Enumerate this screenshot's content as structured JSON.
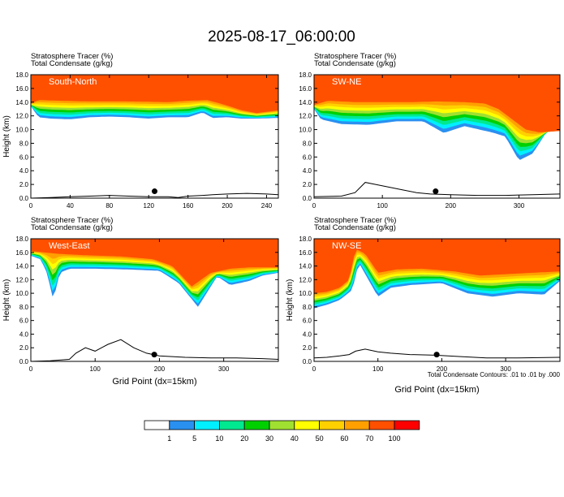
{
  "figure": {
    "title": "2025-08-17_06:00:00",
    "footnote": "Total Condensate Contours: .01 to .01 by .000"
  },
  "colorbar": {
    "colors": [
      "#ffffff",
      "#2a90f0",
      "#00f0ff",
      "#00e890",
      "#00d000",
      "#a0e030",
      "#ffff00",
      "#ffd000",
      "#ffa000",
      "#ff5000",
      "#ff0000"
    ],
    "labels": [
      "1",
      "5",
      "10",
      "20",
      "30",
      "40",
      "50",
      "60",
      "70",
      "100"
    ]
  },
  "chart_data": [
    {
      "type": "heatmap",
      "panel_label": "South-North",
      "left_title_1": "Stratosphere Tracer",
      "left_units_1": "(%)",
      "left_title_2": "Total Condensate",
      "left_units_2": "(g/kg)",
      "ylabel": "Height (km)",
      "xlabel": "",
      "xlim": [
        0,
        252
      ],
      "ylim": [
        0,
        18
      ],
      "xticks": [
        "0",
        "40",
        "80",
        "120",
        "160",
        "200",
        "240"
      ],
      "xtick_values": [
        0,
        40,
        80,
        120,
        160,
        200,
        240
      ],
      "yticks": [
        "0.0",
        "2.0",
        "4.0",
        "6.0",
        "8.0",
        "10.0",
        "12.0",
        "14.0",
        "16.0",
        "18.0"
      ],
      "tracer_base": [
        [
          0,
          13.4
        ],
        [
          8,
          11.8
        ],
        [
          20,
          11.6
        ],
        [
          40,
          11.5
        ],
        [
          60,
          11.8
        ],
        [
          80,
          11.9
        ],
        [
          100,
          11.8
        ],
        [
          120,
          11.6
        ],
        [
          140,
          11.8
        ],
        [
          160,
          11.8
        ],
        [
          175,
          12.5
        ],
        [
          185,
          11.7
        ],
        [
          200,
          11.8
        ],
        [
          215,
          11.6
        ],
        [
          230,
          11.6
        ],
        [
          252,
          11.7
        ]
      ],
      "tracer_top_red": [
        [
          0,
          13.8
        ],
        [
          8,
          14.3
        ],
        [
          30,
          14.2
        ],
        [
          60,
          14.1
        ],
        [
          100,
          14.1
        ],
        [
          140,
          14.0
        ],
        [
          160,
          14.2
        ],
        [
          180,
          14.3
        ],
        [
          200,
          13.5
        ],
        [
          215,
          12.8
        ],
        [
          230,
          12.4
        ],
        [
          252,
          12.8
        ]
      ],
      "terrain": [
        [
          0,
          0
        ],
        [
          20,
          0.1
        ],
        [
          40,
          0.2
        ],
        [
          60,
          0.3
        ],
        [
          80,
          0.4
        ],
        [
          100,
          0.3
        ],
        [
          120,
          0.2
        ],
        [
          140,
          0.2
        ],
        [
          150,
          0.1
        ],
        [
          160,
          0.3
        ],
        [
          175,
          0.4
        ],
        [
          185,
          0.5
        ],
        [
          200,
          0.6
        ],
        [
          220,
          0.7
        ],
        [
          240,
          0.6
        ],
        [
          252,
          0.5
        ]
      ],
      "marker": {
        "x": 126,
        "y": 1.0
      }
    },
    {
      "type": "heatmap",
      "panel_label": "SW-NE",
      "left_title_1": "Stratosphere Tracer",
      "left_units_1": "(%)",
      "left_title_2": "Total Condensate",
      "left_units_2": "(g/kg)",
      "ylabel": "",
      "xlabel": "",
      "xlim": [
        0,
        360
      ],
      "ylim": [
        0,
        18
      ],
      "xticks": [
        "0",
        "100",
        "200",
        "300"
      ],
      "xtick_values": [
        0,
        100,
        200,
        300
      ],
      "yticks": [
        "0.0",
        "2.0",
        "4.0",
        "6.0",
        "8.0",
        "10.0",
        "12.0",
        "14.0",
        "16.0",
        "18.0"
      ],
      "tracer_base": [
        [
          0,
          13.0
        ],
        [
          10,
          11.5
        ],
        [
          40,
          10.8
        ],
        [
          80,
          10.7
        ],
        [
          120,
          11.2
        ],
        [
          160,
          11.2
        ],
        [
          190,
          9.5
        ],
        [
          220,
          10.5
        ],
        [
          260,
          9.6
        ],
        [
          280,
          9.0
        ],
        [
          300,
          5.5
        ],
        [
          320,
          6.5
        ],
        [
          340,
          9.6
        ],
        [
          360,
          10.0
        ]
      ],
      "tracer_top_red": [
        [
          0,
          13.6
        ],
        [
          20,
          14.2
        ],
        [
          60,
          14.0
        ],
        [
          100,
          14.0
        ],
        [
          140,
          14.0
        ],
        [
          180,
          14.1
        ],
        [
          220,
          14.0
        ],
        [
          250,
          13.8
        ],
        [
          270,
          13.0
        ],
        [
          290,
          11.5
        ],
        [
          310,
          10.0
        ],
        [
          330,
          9.6
        ],
        [
          360,
          9.8
        ]
      ],
      "terrain": [
        [
          0,
          0.2
        ],
        [
          40,
          0.3
        ],
        [
          60,
          0.8
        ],
        [
          75,
          2.3
        ],
        [
          90,
          2.0
        ],
        [
          110,
          1.6
        ],
        [
          130,
          1.2
        ],
        [
          150,
          0.8
        ],
        [
          170,
          0.6
        ],
        [
          200,
          0.5
        ],
        [
          240,
          0.4
        ],
        [
          280,
          0.4
        ],
        [
          320,
          0.5
        ],
        [
          360,
          0.6
        ]
      ],
      "marker": {
        "x": 178,
        "y": 1.0
      }
    },
    {
      "type": "heatmap",
      "panel_label": "West-East",
      "left_title_1": "Stratosphere Tracer",
      "left_units_1": "(%)",
      "left_title_2": "Total Condensate",
      "left_units_2": "(g/kg)",
      "ylabel": "Height (km)",
      "xlabel": "Grid Point (dx=15km)",
      "xlim": [
        0,
        385
      ],
      "ylim": [
        0,
        18
      ],
      "xticks": [
        "0",
        "100",
        "200",
        "300"
      ],
      "xtick_values": [
        0,
        100,
        200,
        300
      ],
      "yticks": [
        "0.0",
        "2.0",
        "4.0",
        "6.0",
        "8.0",
        "10.0",
        "12.0",
        "14.0",
        "16.0",
        "18.0"
      ],
      "tracer_base": [
        [
          0,
          15.5
        ],
        [
          15,
          15.0
        ],
        [
          25,
          13.0
        ],
        [
          35,
          9.0
        ],
        [
          45,
          13.0
        ],
        [
          60,
          13.6
        ],
        [
          100,
          13.6
        ],
        [
          150,
          13.5
        ],
        [
          200,
          13.3
        ],
        [
          230,
          11.5
        ],
        [
          260,
          8.0
        ],
        [
          290,
          12.5
        ],
        [
          310,
          11.2
        ],
        [
          340,
          11.8
        ],
        [
          360,
          12.6
        ],
        [
          385,
          13.0
        ]
      ],
      "tracer_top_red": [
        [
          0,
          16.2
        ],
        [
          20,
          16.0
        ],
        [
          40,
          15.8
        ],
        [
          80,
          15.6
        ],
        [
          140,
          15.4
        ],
        [
          190,
          15.0
        ],
        [
          220,
          14.0
        ],
        [
          250,
          11.0
        ],
        [
          280,
          13.0
        ],
        [
          310,
          13.6
        ],
        [
          340,
          13.8
        ],
        [
          385,
          13.8
        ]
      ],
      "terrain": [
        [
          0,
          0
        ],
        [
          30,
          0.1
        ],
        [
          60,
          0.3
        ],
        [
          70,
          1.2
        ],
        [
          85,
          2.0
        ],
        [
          100,
          1.5
        ],
        [
          120,
          2.5
        ],
        [
          140,
          3.2
        ],
        [
          160,
          2.0
        ],
        [
          180,
          1.2
        ],
        [
          200,
          0.8
        ],
        [
          240,
          0.6
        ],
        [
          280,
          0.5
        ],
        [
          320,
          0.5
        ],
        [
          360,
          0.4
        ],
        [
          385,
          0.3
        ]
      ],
      "marker": {
        "x": 192,
        "y": 1.0
      }
    },
    {
      "type": "heatmap",
      "panel_label": "NW-SE",
      "left_title_1": "Stratosphere Tracer",
      "left_units_1": "(%)",
      "left_title_2": "Total Condensate",
      "left_units_2": "(g/kg)",
      "ylabel": "Height (km)",
      "xlabel": "Grid Point (dx=15km)",
      "xlim": [
        0,
        385
      ],
      "ylim": [
        0,
        18
      ],
      "xticks": [
        "0",
        "100",
        "200",
        "300"
      ],
      "xtick_values": [
        0,
        100,
        200,
        300
      ],
      "yticks": [
        "0.0",
        "2.0",
        "4.0",
        "6.0",
        "8.0",
        "10.0",
        "12.0",
        "14.0",
        "16.0",
        "18.0"
      ],
      "tracer_base": [
        [
          0,
          7.8
        ],
        [
          20,
          8.3
        ],
        [
          40,
          9.0
        ],
        [
          60,
          10.5
        ],
        [
          70,
          14.5
        ],
        [
          85,
          12.0
        ],
        [
          100,
          9.5
        ],
        [
          120,
          10.8
        ],
        [
          150,
          11.2
        ],
        [
          200,
          11.5
        ],
        [
          240,
          10.0
        ],
        [
          280,
          9.5
        ],
        [
          320,
          10.0
        ],
        [
          360,
          9.8
        ],
        [
          385,
          11.8
        ]
      ],
      "tracer_top_red": [
        [
          0,
          10.0
        ],
        [
          20,
          10.2
        ],
        [
          40,
          10.8
        ],
        [
          55,
          12.0
        ],
        [
          65,
          16.5
        ],
        [
          80,
          15.8
        ],
        [
          100,
          13.0
        ],
        [
          130,
          13.5
        ],
        [
          170,
          13.6
        ],
        [
          220,
          13.2
        ],
        [
          260,
          12.6
        ],
        [
          300,
          12.8
        ],
        [
          340,
          13.0
        ],
        [
          385,
          13.2
        ]
      ],
      "terrain": [
        [
          0,
          0.5
        ],
        [
          20,
          0.6
        ],
        [
          40,
          0.8
        ],
        [
          55,
          1.0
        ],
        [
          65,
          1.5
        ],
        [
          80,
          1.8
        ],
        [
          100,
          1.4
        ],
        [
          120,
          1.2
        ],
        [
          150,
          1.0
        ],
        [
          190,
          0.9
        ],
        [
          230,
          0.7
        ],
        [
          270,
          0.5
        ],
        [
          320,
          0.5
        ],
        [
          385,
          0.6
        ]
      ],
      "marker": {
        "x": 192,
        "y": 1.0
      }
    }
  ]
}
